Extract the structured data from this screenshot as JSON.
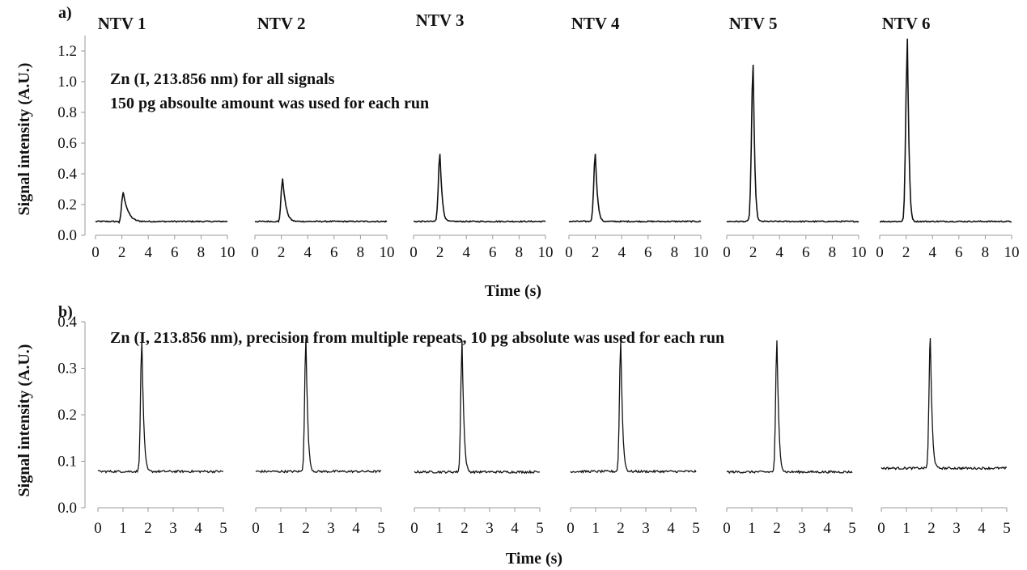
{
  "chart_data": [
    {
      "type": "line",
      "panel_label": "a)",
      "ylabel": "Signal intensity (A.U.)",
      "xlabel": "Time (s)",
      "annotation": [
        "Zn (I, 213.856 nm) for all signals",
        "150 pg absoulte amount was used for each run"
      ],
      "ylim": [
        0,
        1.3
      ],
      "yticks": [
        "0.0",
        "0.2",
        "0.4",
        "0.6",
        "0.8",
        "1.0",
        "1.2"
      ],
      "xlim": [
        0,
        10
      ],
      "xticks": [
        "0",
        "2",
        "4",
        "6",
        "8",
        "10"
      ],
      "baseline": 0.09,
      "series": [
        {
          "name": "NTV 1",
          "peak_time": 2.1,
          "peak_height": 0.28,
          "tail": 0.7
        },
        {
          "name": "NTV 2",
          "peak_time": 2.1,
          "peak_height": 0.37,
          "tail": 0.4
        },
        {
          "name": "NTV 3",
          "peak_time": 2.0,
          "peak_height": 0.53,
          "tail": 0.2
        },
        {
          "name": "NTV 4",
          "peak_time": 2.0,
          "peak_height": 0.53,
          "tail": 0.2
        },
        {
          "name": "NTV 5",
          "peak_time": 2.0,
          "peak_height": 1.11,
          "tail": 0.1
        },
        {
          "name": "NTV 6",
          "peak_time": 2.1,
          "peak_height": 1.28,
          "tail": 0.1
        }
      ]
    },
    {
      "type": "line",
      "panel_label": "b)",
      "ylabel": "Signal intensity (A.U.)",
      "xlabel": "Time (s)",
      "annotation": [
        "Zn (I, 213.856 nm), precision from multiple repeats, 10 pg absolute was used for each run"
      ],
      "ylim": [
        0,
        0.4
      ],
      "yticks": [
        "0.0",
        "0.1",
        "0.2",
        "0.3",
        "0.4"
      ],
      "xlim": [
        0,
        5
      ],
      "xticks": [
        "0",
        "1",
        "2",
        "3",
        "4",
        "5"
      ],
      "baseline": 0.078,
      "series": [
        {
          "peak_time": 1.75,
          "peak_height": 0.36,
          "baseline": 0.078
        },
        {
          "peak_time": 2.0,
          "peak_height": 0.365,
          "baseline": 0.078
        },
        {
          "peak_time": 1.9,
          "peak_height": 0.36,
          "baseline": 0.077
        },
        {
          "peak_time": 2.0,
          "peak_height": 0.36,
          "baseline": 0.078
        },
        {
          "peak_time": 2.0,
          "peak_height": 0.36,
          "baseline": 0.077
        },
        {
          "peak_time": 1.95,
          "peak_height": 0.365,
          "baseline": 0.085
        }
      ]
    }
  ]
}
